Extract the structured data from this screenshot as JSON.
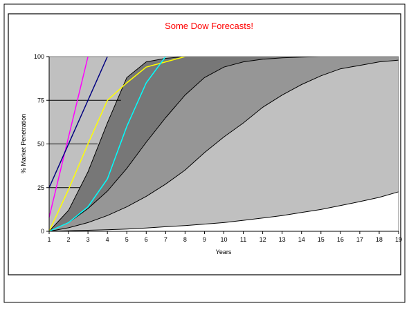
{
  "chart_data": {
    "type": "area",
    "title": "Some Dow Forecasts!",
    "xlabel": "Years",
    "ylabel": "% Market Penetration",
    "x": [
      1,
      2,
      3,
      4,
      5,
      6,
      7,
      8,
      9,
      10,
      11,
      12,
      13,
      14,
      15,
      16,
      17,
      18,
      19
    ],
    "xlim": [
      1,
      19
    ],
    "ylim": [
      0,
      100
    ],
    "yticks": [
      0,
      25,
      50,
      75,
      100
    ],
    "grid": false,
    "legend": "none",
    "colors": {
      "title": "#ff0000",
      "plot_bg": "#c0c0c0",
      "band_light": "#c0c0c0",
      "band_mid": "#969696",
      "band_dark": "#777777",
      "below_curve": "#ffffff"
    },
    "bands": [
      {
        "x": [
          1,
          2,
          3,
          4,
          5,
          6,
          7,
          8,
          9,
          10,
          11,
          12,
          13,
          14,
          15,
          16,
          17,
          18,
          19
        ],
        "values": [
          0,
          0.3,
          0.6,
          0.9,
          1.3,
          1.9,
          2.6,
          3.3,
          4.1,
          5.0,
          6.3,
          7.6,
          9.0,
          10.8,
          12.5,
          14.7,
          17.0,
          19.4,
          22.6
        ]
      },
      {
        "x": [
          1,
          2,
          3,
          4,
          5,
          6,
          7,
          8,
          9,
          10,
          11,
          12,
          13,
          14,
          15,
          16,
          17,
          18,
          19
        ],
        "values": [
          0,
          2,
          5,
          9,
          14,
          20,
          27,
          35,
          45,
          54,
          62,
          71,
          78,
          84,
          89,
          93,
          95,
          97,
          98
        ]
      },
      {
        "x": [
          1,
          2,
          3,
          4,
          5,
          6,
          7,
          8,
          9,
          10,
          11,
          12,
          13,
          14,
          15,
          16,
          17,
          18,
          19
        ],
        "values": [
          0,
          5,
          13,
          23,
          36,
          51,
          65,
          78,
          88,
          94,
          97,
          98.5,
          99.3,
          99.7,
          100,
          100,
          100,
          100,
          100
        ]
      },
      {
        "x": [
          1,
          2,
          3,
          4,
          5,
          6,
          7,
          8,
          9,
          10,
          11,
          12,
          13,
          14,
          15,
          16,
          17,
          18,
          19
        ],
        "values": [
          0,
          12,
          34,
          62,
          88,
          97,
          99,
          100,
          100,
          100,
          100,
          100,
          100,
          100,
          100,
          100,
          100,
          100,
          100
        ]
      }
    ],
    "series": [
      {
        "color": "#ff00ff",
        "x": [
          1,
          3
        ],
        "values": [
          8,
          100
        ]
      },
      {
        "color": "#000080",
        "x": [
          1,
          4
        ],
        "values": [
          25,
          100
        ]
      },
      {
        "color": "#ffff00",
        "x": [
          1,
          2,
          3,
          4,
          5,
          6,
          7,
          8
        ],
        "values": [
          0,
          24,
          50,
          75,
          85,
          94,
          97,
          100
        ]
      },
      {
        "color": "#00ffff",
        "x": [
          1,
          2,
          3,
          4,
          5,
          6,
          7
        ],
        "values": [
          0,
          5,
          14,
          30,
          60,
          85,
          100
        ]
      }
    ],
    "hlines": [
      {
        "y": 25,
        "x": [
          1,
          2.6
        ]
      },
      {
        "y": 50,
        "x": [
          1,
          3.5
        ]
      },
      {
        "y": 75,
        "x": [
          1,
          4.7
        ]
      }
    ]
  }
}
